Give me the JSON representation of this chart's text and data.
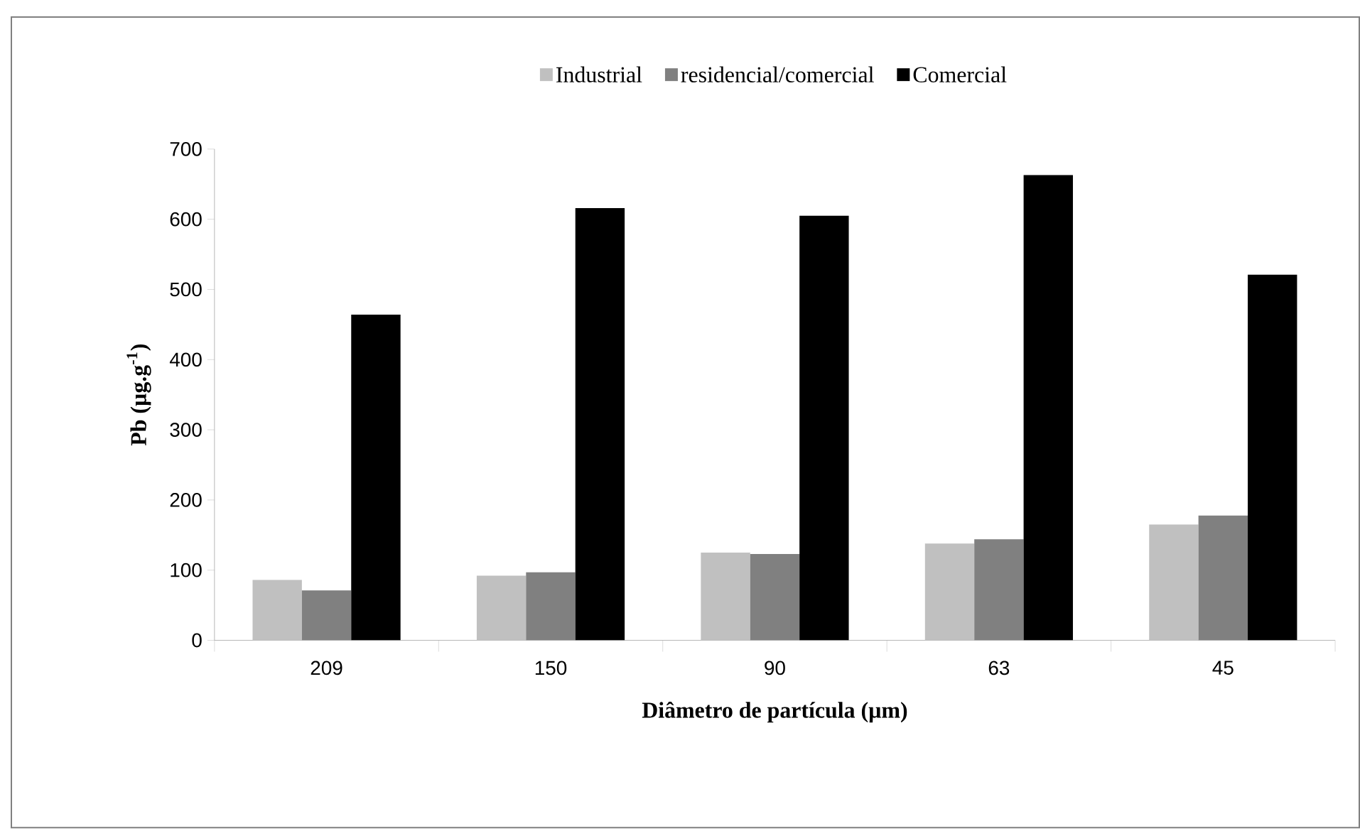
{
  "chart_data": {
    "type": "bar",
    "xlabel": "Diâmetro de partícula (µm)",
    "ylabel": "Pb (µg.g$^{-1}$)",
    "categories": [
      "209",
      "150",
      "90",
      "63",
      "45"
    ],
    "series": [
      {
        "name": "Industrial",
        "color": "#c0c0c0",
        "values": [
          86,
          92,
          125,
          138,
          165
        ]
      },
      {
        "name": "residencial/comercial",
        "color": "#808080",
        "values": [
          71,
          97,
          123,
          144,
          178
        ]
      },
      {
        "name": "Comercial",
        "color": "#000000",
        "values": [
          464,
          616,
          605,
          663,
          521
        ]
      }
    ],
    "ylim": [
      0,
      700
    ],
    "yticks": [
      0,
      100,
      200,
      300,
      400,
      500,
      600,
      700
    ],
    "grid": false,
    "legend": "top"
  }
}
